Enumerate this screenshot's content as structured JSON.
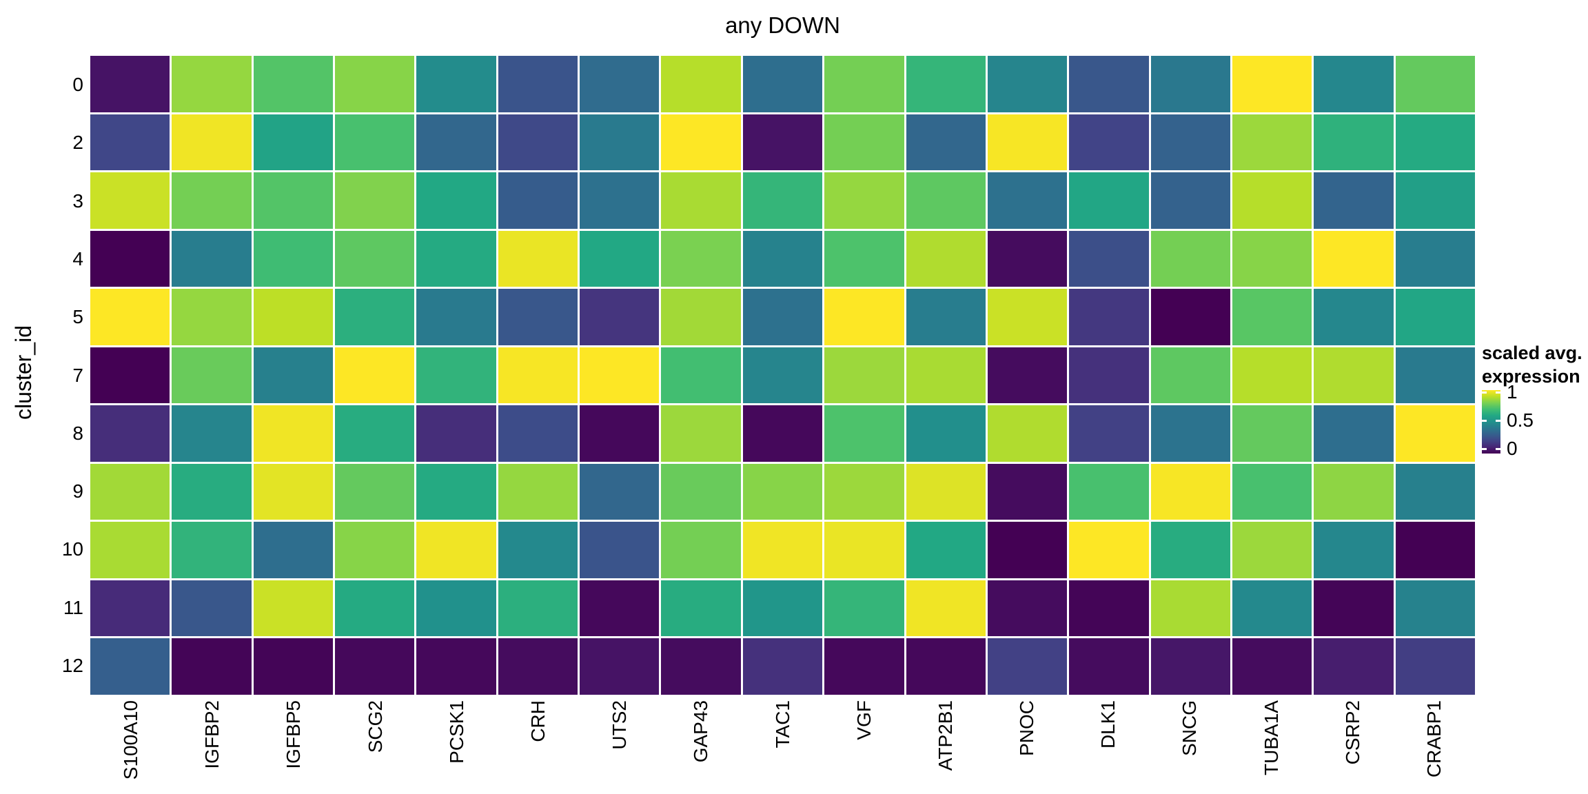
{
  "title": "any DOWN",
  "y_axis_title": "cluster_id",
  "legend": {
    "title_line1": "scaled avg.",
    "title_line2": "expression",
    "ticks": [
      {
        "label": "1",
        "value": 1
      },
      {
        "label": "0.5",
        "value": 0.5
      },
      {
        "label": "0",
        "value": 0
      }
    ]
  },
  "colors": {
    "background": "#ffffff",
    "text": "#000000",
    "cell_border": "#ffffff",
    "viridis_stops": [
      "#440154",
      "#482575",
      "#414487",
      "#355f8d",
      "#2a788e",
      "#21918c",
      "#22a884",
      "#42be71",
      "#7ad151",
      "#bddf26",
      "#fde725"
    ]
  },
  "chart_data": {
    "type": "heatmap",
    "title": "any DOWN",
    "ylabel": "cluster_id",
    "xlabel": "",
    "legend_title": "scaled avg. expression",
    "colormap": "viridis",
    "color_domain": [
      0,
      1
    ],
    "legend_tick_values": [
      1,
      0.5,
      0
    ],
    "x_categories": [
      "S100A10",
      "IGFBP2",
      "IGFBP5",
      "SCG2",
      "PCSK1",
      "CRH",
      "UTS2",
      "GAP43",
      "TAC1",
      "VGF",
      "ATP2B1",
      "PNOC",
      "DLK1",
      "SNCG",
      "TUBA1A",
      "CSRP2",
      "CRABP1"
    ],
    "y_categories": [
      "0",
      "2",
      "3",
      "4",
      "5",
      "7",
      "8",
      "9",
      "10",
      "11",
      "12"
    ],
    "values": [
      [
        0.05,
        0.84,
        0.73,
        0.82,
        0.48,
        0.26,
        0.35,
        0.89,
        0.36,
        0.79,
        0.66,
        0.45,
        0.27,
        0.4,
        1.0,
        0.46,
        0.76
      ],
      [
        0.21,
        0.98,
        0.58,
        0.71,
        0.33,
        0.22,
        0.41,
        1.0,
        0.05,
        0.79,
        0.33,
        0.99,
        0.2,
        0.31,
        0.85,
        0.64,
        0.61
      ],
      [
        0.92,
        0.79,
        0.73,
        0.81,
        0.6,
        0.29,
        0.37,
        0.87,
        0.66,
        0.84,
        0.75,
        0.37,
        0.59,
        0.31,
        0.89,
        0.32,
        0.56
      ],
      [
        0.0,
        0.42,
        0.69,
        0.75,
        0.61,
        0.97,
        0.6,
        0.8,
        0.44,
        0.72,
        0.88,
        0.03,
        0.24,
        0.79,
        0.82,
        1.0,
        0.42
      ],
      [
        1.0,
        0.84,
        0.9,
        0.63,
        0.41,
        0.27,
        0.15,
        0.86,
        0.37,
        1.0,
        0.42,
        0.92,
        0.16,
        0.0,
        0.74,
        0.46,
        0.59
      ],
      [
        0.0,
        0.77,
        0.43,
        1.0,
        0.65,
        0.99,
        1.0,
        0.7,
        0.45,
        0.85,
        0.87,
        0.03,
        0.14,
        0.75,
        0.89,
        0.88,
        0.41
      ],
      [
        0.13,
        0.45,
        0.98,
        0.62,
        0.13,
        0.23,
        0.02,
        0.85,
        0.02,
        0.72,
        0.49,
        0.88,
        0.19,
        0.38,
        0.76,
        0.36,
        1.0
      ],
      [
        0.86,
        0.62,
        0.96,
        0.76,
        0.61,
        0.84,
        0.33,
        0.77,
        0.82,
        0.85,
        0.95,
        0.03,
        0.71,
        0.99,
        0.71,
        0.83,
        0.43
      ],
      [
        0.87,
        0.65,
        0.36,
        0.82,
        0.98,
        0.47,
        0.26,
        0.79,
        0.98,
        0.97,
        0.6,
        0.0,
        1.0,
        0.62,
        0.85,
        0.46,
        0.0
      ],
      [
        0.12,
        0.27,
        0.92,
        0.61,
        0.5,
        0.63,
        0.02,
        0.62,
        0.52,
        0.66,
        0.98,
        0.03,
        0.01,
        0.87,
        0.47,
        0.01,
        0.44
      ],
      [
        0.3,
        0.01,
        0.01,
        0.02,
        0.02,
        0.03,
        0.05,
        0.03,
        0.14,
        0.02,
        0.02,
        0.19,
        0.03,
        0.06,
        0.03,
        0.08,
        0.18
      ]
    ]
  }
}
